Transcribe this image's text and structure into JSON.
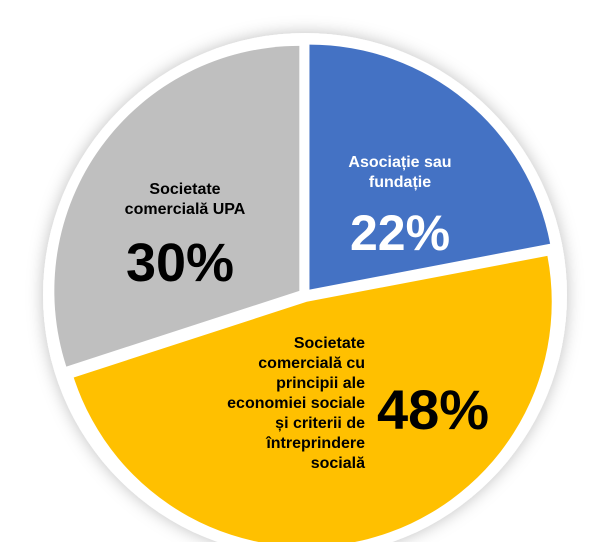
{
  "chart_data": {
    "type": "pie",
    "categories": [
      "Asociație sau\nfundație",
      "Societate\ncomercială cu\nprincipii ale\neconomiei sociale\nși criterii de\nîntreprindere\nsocială",
      "Societate\ncomercială UPA"
    ],
    "values": [
      22,
      48,
      30
    ],
    "value_labels": [
      "22%",
      "48%",
      "30%"
    ],
    "colors": [
      "#4472c4",
      "#ffc000",
      "#bfbfbf"
    ]
  }
}
